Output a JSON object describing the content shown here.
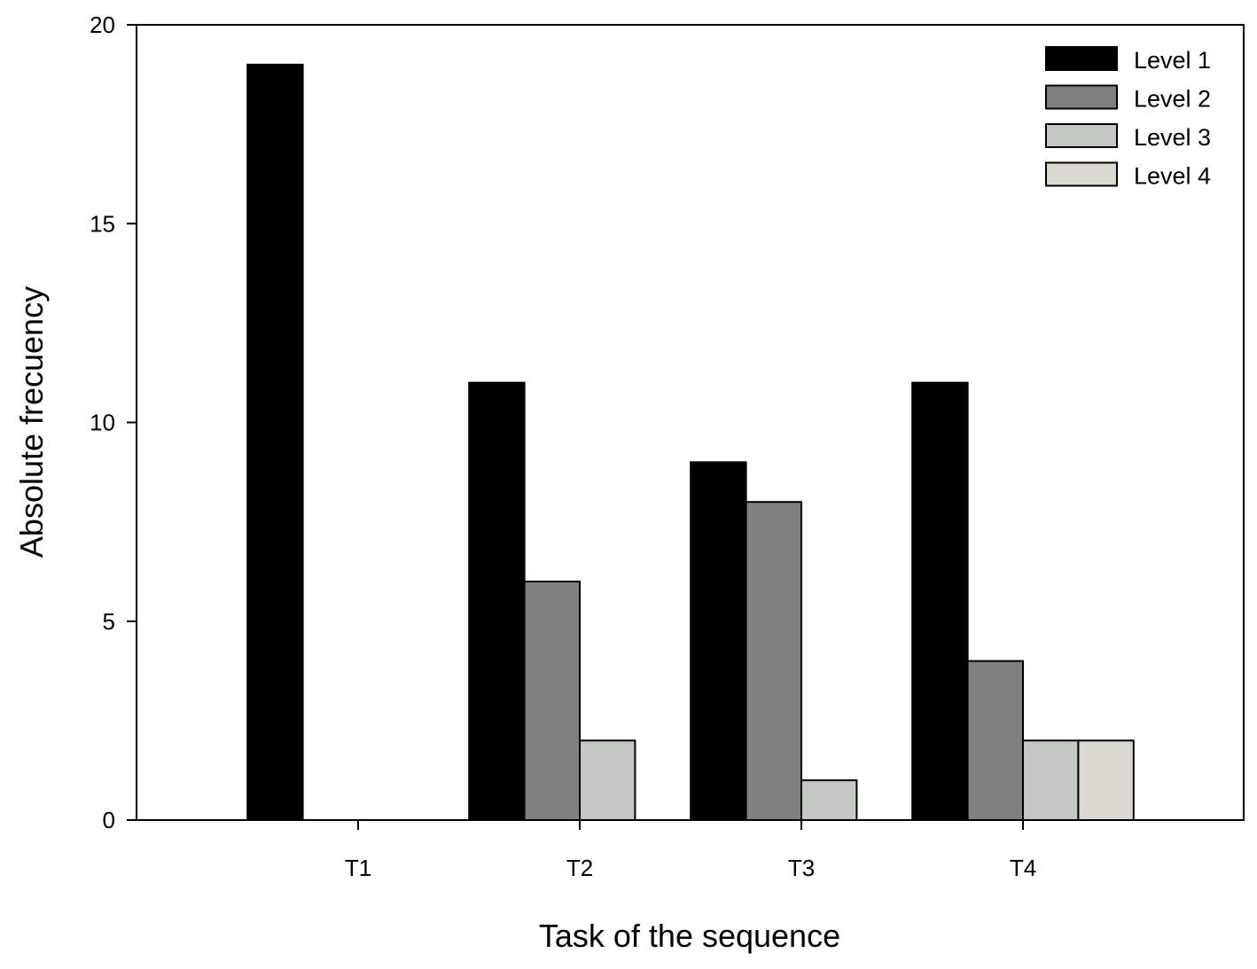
{
  "chart_data": {
    "type": "bar",
    "title": "",
    "xlabel": "Task of the sequence",
    "ylabel": "Absolute frecuency",
    "categories": [
      "T1",
      "T2",
      "T3",
      "T4"
    ],
    "ylim": [
      0,
      20
    ],
    "yticks": [
      0,
      5,
      10,
      15,
      20
    ],
    "grid": false,
    "legend_position": "top-right",
    "series": [
      {
        "name": "Level 1",
        "color": "#000000",
        "values": [
          19,
          11,
          9,
          11
        ]
      },
      {
        "name": "Level 2",
        "color": "#808080",
        "values": [
          0,
          6,
          8,
          4
        ]
      },
      {
        "name": "Level 3",
        "color": "#c3c8c2",
        "values": [
          0,
          2,
          1,
          2
        ]
      },
      {
        "name": "Level 4",
        "color": "#d9d9d1",
        "values": [
          0,
          0,
          0,
          2
        ]
      }
    ]
  }
}
